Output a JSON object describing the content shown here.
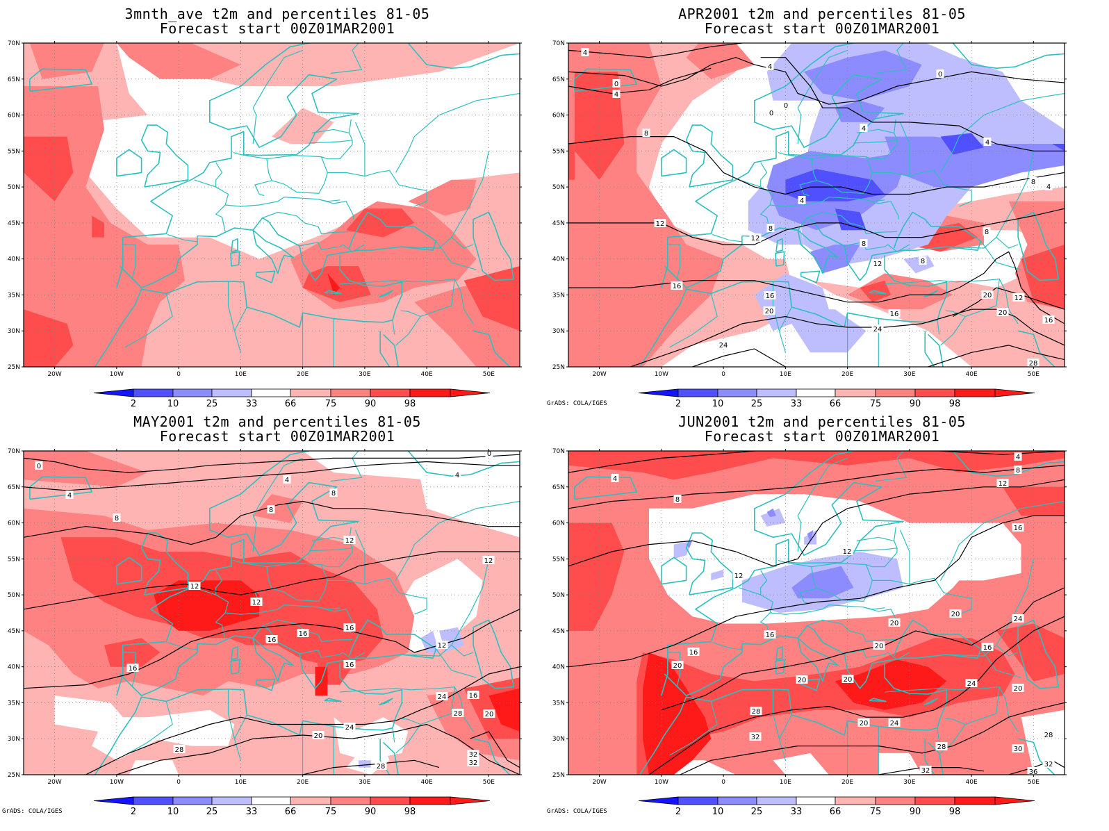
{
  "credit": "GrADS: COLA/IGES",
  "colorbar": {
    "labels": [
      "2",
      "10",
      "25",
      "33",
      "66",
      "75",
      "90",
      "98"
    ],
    "colors": [
      "#1414ff",
      "#5050ff",
      "#8c8cff",
      "#bebeff",
      "#ffffff",
      "#ffb4b4",
      "#ff8282",
      "#ff4c4c",
      "#ff1a1a"
    ]
  },
  "axes": {
    "lat_labels": [
      "70N",
      "65N",
      "60N",
      "55N",
      "50N",
      "45N",
      "40N",
      "35N",
      "30N",
      "25N"
    ],
    "lon_labels": [
      "20W",
      "10W",
      "0",
      "10E",
      "20E",
      "30E",
      "40E",
      "50E"
    ]
  },
  "panels": [
    {
      "title1": "3mnth_ave t2m and percentiles 81-05",
      "title2": "Forecast start 00Z01MAR2001",
      "show_credit": false,
      "contour_labels": []
    },
    {
      "title1": "APR2001 t2m and percentiles 81-05",
      "title2": "Forecast start 00Z01MAR2001",
      "show_credit": true,
      "contour_labels": [
        "4",
        "0",
        "4",
        "4",
        "0",
        "0",
        "0",
        "4",
        "8",
        "4",
        "8",
        "4",
        "8",
        "12",
        "8",
        "12",
        "8",
        "12",
        "8",
        "16",
        "16",
        "20",
        "16",
        "20",
        "12",
        "24",
        "20",
        "16",
        "24",
        "28",
        "4"
      ]
    },
    {
      "title1": "MAY2001 t2m and percentiles 81-05",
      "title2": "Forecast start 00Z01MAR2001",
      "show_credit": true,
      "contour_labels": [
        "0",
        "4",
        "4",
        "0",
        "4",
        "8",
        "8",
        "8",
        "12",
        "12",
        "12",
        "12",
        "16",
        "16",
        "16",
        "16",
        "12",
        "16",
        "16",
        "24",
        "28",
        "20",
        "20",
        "24",
        "28",
        "28",
        "32",
        "32"
      ]
    },
    {
      "title1": "JUN2001 t2m and percentiles 81-05",
      "title2": "Forecast start 00Z01MAR2001",
      "show_credit": true,
      "contour_labels": [
        "4",
        "8",
        "4",
        "8",
        "12",
        "16",
        "12",
        "12",
        "16",
        "20",
        "20",
        "24",
        "20",
        "20",
        "16",
        "16",
        "20",
        "20",
        "20",
        "24",
        "20",
        "28",
        "24",
        "28",
        "32",
        "28",
        "30",
        "32",
        "32",
        "36"
      ]
    }
  ]
}
